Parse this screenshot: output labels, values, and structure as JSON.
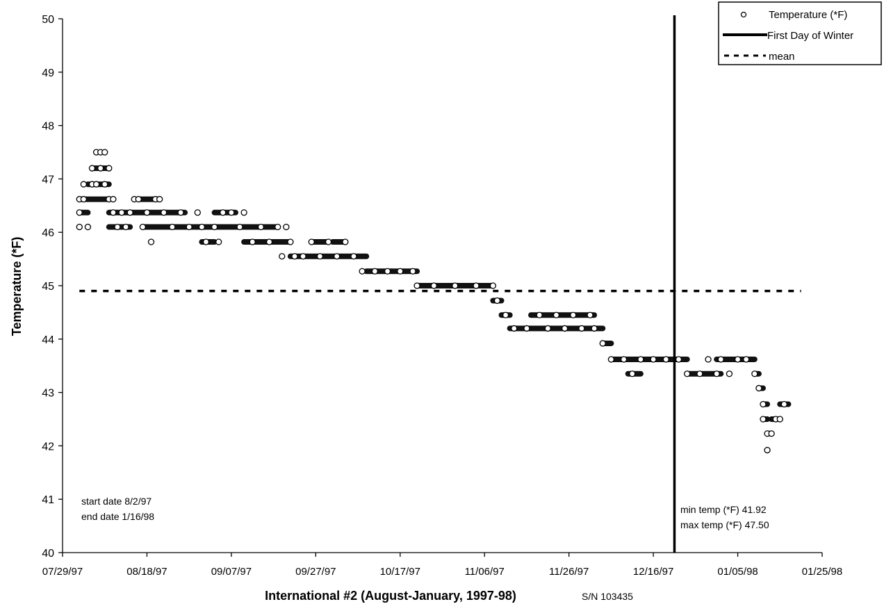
{
  "chart_data": {
    "type": "scatter",
    "title": "",
    "xlabel": "International #2 (August-January, 1997-98)",
    "xlabel_suffix": "S/N 103435",
    "ylabel": "Temperature (*F)",
    "ylim": [
      40,
      50
    ],
    "yticks": [
      40,
      41,
      42,
      43,
      44,
      45,
      46,
      47,
      48,
      49,
      50
    ],
    "xlim": [
      "1997-07-29",
      "1998-01-25"
    ],
    "xtick_labels": [
      "07/29/97",
      "08/18/97",
      "09/07/97",
      "09/27/97",
      "10/17/97",
      "11/06/97",
      "11/26/97",
      "12/16/97",
      "01/05/98",
      "01/25/98"
    ],
    "grid": false,
    "legend": {
      "position": "top-right",
      "entries": [
        {
          "key": "temperature",
          "label": "Temperature (*F)",
          "marker": "circle-open"
        },
        {
          "key": "winter",
          "label": "First Day of Winter",
          "marker": "solid-line"
        },
        {
          "key": "mean",
          "label": "mean",
          "marker": "dashed-line"
        }
      ]
    },
    "series": [
      {
        "name": "Temperature (*F)",
        "points": [
          [
            "1997-08-02",
            46.62
          ],
          [
            "1997-08-02",
            46.37
          ],
          [
            "1997-08-02",
            46.1
          ],
          [
            "1997-08-03",
            46.9
          ],
          [
            "1997-08-03",
            46.62
          ],
          [
            "1997-08-04",
            46.1
          ],
          [
            "1997-08-05",
            46.9
          ],
          [
            "1997-08-05",
            47.2
          ],
          [
            "1997-08-06",
            47.5
          ],
          [
            "1997-08-06",
            46.9
          ],
          [
            "1997-08-07",
            47.5
          ],
          [
            "1997-08-07",
            47.2
          ],
          [
            "1997-08-08",
            46.9
          ],
          [
            "1997-08-08",
            47.5
          ],
          [
            "1997-08-09",
            47.2
          ],
          [
            "1997-08-09",
            46.62
          ],
          [
            "1997-08-10",
            46.62
          ],
          [
            "1997-08-10",
            46.37
          ],
          [
            "1997-08-11",
            46.1
          ],
          [
            "1997-08-12",
            46.37
          ],
          [
            "1997-08-13",
            46.1
          ],
          [
            "1997-08-14",
            46.37
          ],
          [
            "1997-08-15",
            46.62
          ],
          [
            "1997-08-16",
            46.62
          ],
          [
            "1997-08-17",
            46.1
          ],
          [
            "1997-08-18",
            46.37
          ],
          [
            "1997-08-19",
            45.82
          ],
          [
            "1997-08-20",
            46.62
          ],
          [
            "1997-08-21",
            46.62
          ],
          [
            "1997-08-22",
            46.37
          ],
          [
            "1997-08-24",
            46.1
          ],
          [
            "1997-08-26",
            46.37
          ],
          [
            "1997-08-28",
            46.1
          ],
          [
            "1997-08-30",
            46.37
          ],
          [
            "1997-08-31",
            46.1
          ],
          [
            "1997-09-01",
            45.82
          ],
          [
            "1997-09-03",
            46.1
          ],
          [
            "1997-09-04",
            45.82
          ],
          [
            "1997-09-05",
            46.37
          ],
          [
            "1997-09-07",
            46.37
          ],
          [
            "1997-09-09",
            46.1
          ],
          [
            "1997-09-10",
            46.37
          ],
          [
            "1997-09-12",
            45.82
          ],
          [
            "1997-09-14",
            46.1
          ],
          [
            "1997-09-16",
            45.82
          ],
          [
            "1997-09-18",
            46.1
          ],
          [
            "1997-09-19",
            45.55
          ],
          [
            "1997-09-20",
            46.1
          ],
          [
            "1997-09-21",
            45.82
          ],
          [
            "1997-09-22",
            45.55
          ],
          [
            "1997-09-24",
            45.55
          ],
          [
            "1997-09-26",
            45.82
          ],
          [
            "1997-09-28",
            45.55
          ],
          [
            "1997-09-30",
            45.82
          ],
          [
            "1997-10-02",
            45.55
          ],
          [
            "1997-10-04",
            45.82
          ],
          [
            "1997-10-06",
            45.55
          ],
          [
            "1997-10-08",
            45.27
          ],
          [
            "1997-10-11",
            45.27
          ],
          [
            "1997-10-14",
            45.27
          ],
          [
            "1997-10-17",
            45.27
          ],
          [
            "1997-10-20",
            45.27
          ],
          [
            "1997-10-21",
            45.0
          ],
          [
            "1997-10-25",
            45.0
          ],
          [
            "1997-10-30",
            45.0
          ],
          [
            "1997-11-04",
            45.0
          ],
          [
            "1997-11-08",
            45.0
          ],
          [
            "1997-11-09",
            44.72
          ],
          [
            "1997-11-11",
            44.45
          ],
          [
            "1997-11-13",
            44.2
          ],
          [
            "1997-11-16",
            44.2
          ],
          [
            "1997-11-19",
            44.45
          ],
          [
            "1997-11-21",
            44.2
          ],
          [
            "1997-11-23",
            44.45
          ],
          [
            "1997-11-25",
            44.2
          ],
          [
            "1997-11-27",
            44.45
          ],
          [
            "1997-11-29",
            44.2
          ],
          [
            "1997-12-01",
            44.45
          ],
          [
            "1997-12-02",
            44.2
          ],
          [
            "1997-12-04",
            43.92
          ],
          [
            "1997-12-06",
            43.62
          ],
          [
            "1997-12-09",
            43.62
          ],
          [
            "1997-12-11",
            43.35
          ],
          [
            "1997-12-13",
            43.62
          ],
          [
            "1997-12-16",
            43.62
          ],
          [
            "1997-12-19",
            43.62
          ],
          [
            "1997-12-22",
            43.62
          ],
          [
            "1997-12-24",
            43.35
          ],
          [
            "1997-12-27",
            43.35
          ],
          [
            "1997-12-29",
            43.62
          ],
          [
            "1997-12-31",
            43.35
          ],
          [
            "1998-01-01",
            43.62
          ],
          [
            "1998-01-03",
            43.35
          ],
          [
            "1998-01-05",
            43.62
          ],
          [
            "1998-01-07",
            43.62
          ],
          [
            "1998-01-09",
            43.35
          ],
          [
            "1998-01-10",
            43.08
          ],
          [
            "1998-01-11",
            42.78
          ],
          [
            "1998-01-11",
            42.5
          ],
          [
            "1998-01-12",
            42.23
          ],
          [
            "1998-01-12",
            41.92
          ],
          [
            "1998-01-13",
            42.23
          ],
          [
            "1998-01-14",
            42.5
          ],
          [
            "1998-01-15",
            42.5
          ],
          [
            "1998-01-16",
            42.78
          ]
        ],
        "steps": [
          [
            "1997-08-02",
            "1997-08-09",
            46.62
          ],
          [
            "1997-08-04",
            "1997-08-09",
            46.9
          ],
          [
            "1997-08-05",
            "1997-08-09",
            47.2
          ],
          [
            "1997-08-02",
            "1997-08-04",
            46.37
          ],
          [
            "1997-08-09",
            "1997-08-27",
            46.37
          ],
          [
            "1997-08-09",
            "1997-08-14",
            46.1
          ],
          [
            "1997-08-17",
            "1997-08-28",
            46.1
          ],
          [
            "1997-08-16",
            "1997-08-21",
            46.62
          ],
          [
            "1997-08-27",
            "1997-09-18",
            46.1
          ],
          [
            "1997-08-31",
            "1997-09-03",
            45.82
          ],
          [
            "1997-09-03",
            "1997-09-08",
            46.37
          ],
          [
            "1997-09-10",
            "1997-09-21",
            45.82
          ],
          [
            "1997-09-21",
            "1997-10-09",
            45.55
          ],
          [
            "1997-09-26",
            "1997-09-30",
            45.82
          ],
          [
            "1997-10-01",
            "1997-10-04",
            45.82
          ],
          [
            "1997-10-09",
            "1997-10-21",
            45.27
          ],
          [
            "1997-10-21",
            "1997-11-08",
            45.0
          ],
          [
            "1997-11-08",
            "1997-11-10",
            44.72
          ],
          [
            "1997-11-10",
            "1997-11-12",
            44.45
          ],
          [
            "1997-11-12",
            "1997-12-02",
            44.2
          ],
          [
            "1997-11-17",
            "1997-12-02",
            44.45
          ],
          [
            "1997-12-02",
            "1997-12-04",
            44.2
          ],
          [
            "1997-12-04",
            "1997-12-06",
            43.92
          ],
          [
            "1997-12-06",
            "1997-12-24",
            43.62
          ],
          [
            "1997-12-10",
            "1997-12-13",
            43.35
          ],
          [
            "1997-12-24",
            "1998-01-01",
            43.35
          ],
          [
            "1997-12-31",
            "1998-01-09",
            43.62
          ],
          [
            "1998-01-09",
            "1998-01-10",
            43.35
          ],
          [
            "1998-01-10",
            "1998-01-11",
            43.08
          ],
          [
            "1998-01-11",
            "1998-01-12",
            42.78
          ],
          [
            "1998-01-11",
            "1998-01-12",
            42.5
          ],
          [
            "1998-01-12",
            "1998-01-13",
            42.23
          ],
          [
            "1998-01-13",
            "1998-01-15",
            42.5
          ],
          [
            "1998-01-15",
            "1998-01-17",
            42.78
          ]
        ]
      },
      {
        "name": "First Day of Winter",
        "x": "1997-12-21"
      },
      {
        "name": "mean",
        "y": 44.9,
        "x_range": [
          "1997-08-02",
          "1998-01-20"
        ]
      }
    ],
    "annotations": {
      "start_end": [
        "start date 8/2/97",
        "end date 1/16/98"
      ],
      "min_max": [
        "min temp (*F) 41.92",
        "max temp (*F) 47.50"
      ]
    }
  }
}
